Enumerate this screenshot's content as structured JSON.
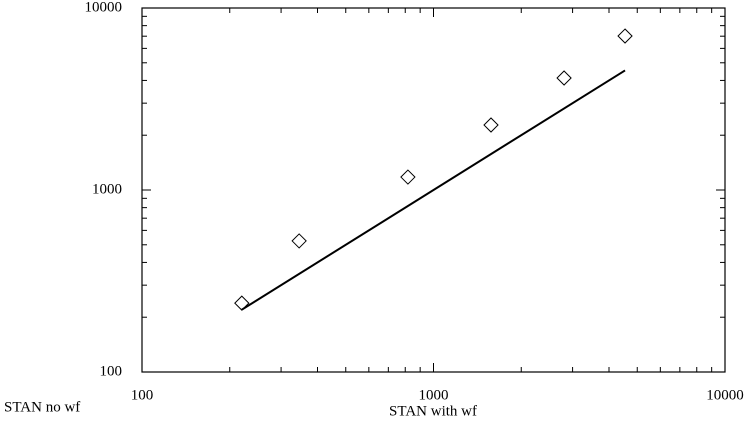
{
  "chart_data": {
    "type": "scatter",
    "xlabel": "STAN with wf",
    "ylabel": "STAN no wf",
    "xscale": "log",
    "yscale": "log",
    "xlim": [
      100,
      10000
    ],
    "ylim": [
      100,
      10000
    ],
    "xticks": [
      100,
      1000,
      10000
    ],
    "yticks": [
      100,
      1000,
      10000
    ],
    "xminor_ticks": [
      200,
      300,
      400,
      500,
      600,
      700,
      800,
      900,
      2000,
      3000,
      4000,
      5000,
      6000,
      7000,
      8000,
      9000
    ],
    "yminor_ticks": [
      200,
      300,
      400,
      500,
      600,
      700,
      800,
      900,
      2000,
      3000,
      4000,
      5000,
      6000,
      7000,
      8000,
      9000
    ],
    "series": [
      {
        "type": "scatter",
        "marker": "diamond",
        "color": "#000000",
        "x": [
          220,
          346,
          817,
          1575,
          2805,
          4540
        ],
        "values": [
          239,
          525,
          1178,
          2276,
          4124,
          7015
        ]
      },
      {
        "type": "line",
        "color": "#000000",
        "x": [
          220,
          4540
        ],
        "values": [
          220,
          4540
        ]
      }
    ]
  }
}
